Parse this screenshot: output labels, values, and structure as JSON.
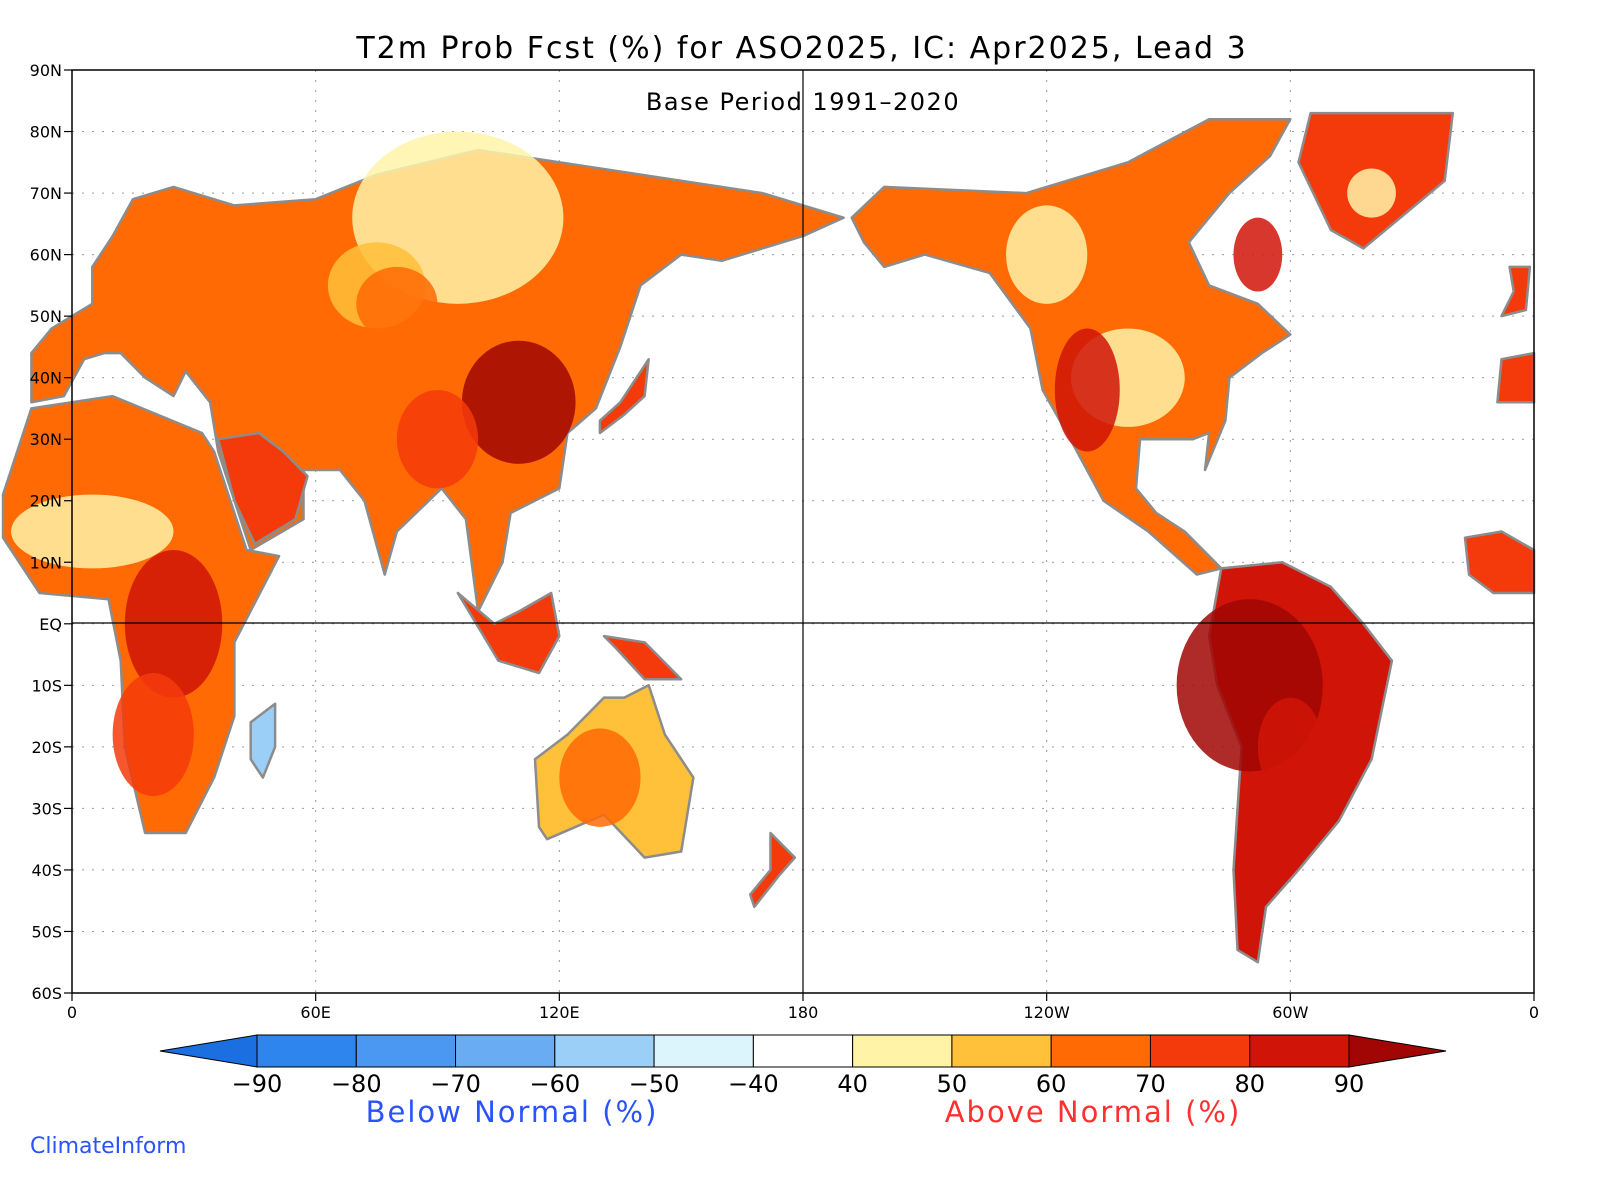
{
  "title": "T2m Prob Fcst (%) for ASO2025, IC: Apr2025, Lead 3",
  "subtitle": "Base Period 1991–2020",
  "credit": "ClimateInform",
  "lat_ticks": [
    "90N",
    "80N",
    "70N",
    "60N",
    "50N",
    "40N",
    "30N",
    "20N",
    "10N",
    "EQ",
    "10S",
    "20S",
    "30S",
    "40S",
    "50S",
    "60S"
  ],
  "lon_ticks": [
    "0",
    "60E",
    "120E",
    "180",
    "120W",
    "60W",
    "0"
  ],
  "colorbar": {
    "ticks": [
      "−90",
      "−80",
      "−70",
      "−60",
      "−50",
      "−40",
      "40",
      "50",
      "60",
      "70",
      "80",
      "90"
    ],
    "colors": [
      "#1c6fe0",
      "#2e85ee",
      "#4a98f2",
      "#6aacf4",
      "#9ccff8",
      "#dcf5fc",
      "#ffffff",
      "#fff3a8",
      "#ffc03a",
      "#ff6a05",
      "#f43a0a",
      "#d01408",
      "#a10604"
    ],
    "below_label": "Below Normal (%)",
    "above_label": "Above Normal (%)",
    "below_color": "#2a52ff",
    "above_color": "#ff3030"
  },
  "map": {
    "continent_outline_color": "#8c8c8c",
    "category_colors": {
      "gt50": "#fff3a8",
      "gt60": "#ffc03a",
      "gt70": "#ff6a05",
      "gt80": "#f43a0a",
      "gt90": "#d01408",
      "gt90p": "#a10604",
      "below50": "#9ccff8"
    }
  }
}
